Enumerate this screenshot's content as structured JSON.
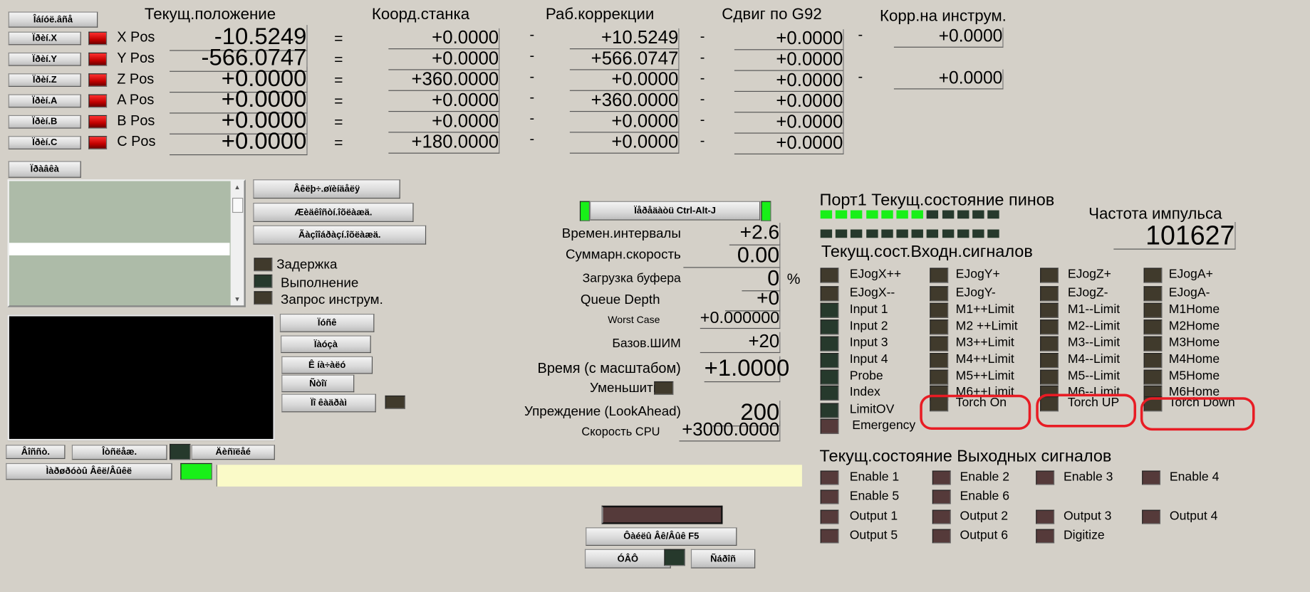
{
  "top_button": "Îáíóë.âñå",
  "headers": {
    "current": "Текущ.положение",
    "machine": "Коорд.станка",
    "work": "Раб.коррекции",
    "g92": "Сдвиг по G92",
    "tool": "Корр.на инструм."
  },
  "axes": [
    {
      "ref": "Ïðèí.X",
      "label": "X Pos",
      "current": "-10.5249",
      "machine": "+0.0000",
      "work": "+10.5249",
      "g92": "+0.0000",
      "tool": "+0.0000"
    },
    {
      "ref": "Ïðèí.Y",
      "label": "Y Pos",
      "current": "-566.0747",
      "machine": "+0.0000",
      "work": "+566.0747",
      "g92": "+0.0000"
    },
    {
      "ref": "Ïðèí.Z",
      "label": "Z Pos",
      "current": "+0.0000",
      "machine": "+360.0000",
      "work": "+0.0000",
      "g92": "+0.0000",
      "tool": "+0.0000"
    },
    {
      "ref": "Ïðèí.A",
      "label": "A Pos",
      "current": "+0.0000",
      "machine": "+0.0000",
      "work": "+360.0000",
      "g92": "+0.0000"
    },
    {
      "ref": "Ïðèí.B",
      "label": "B Pos",
      "current": "+0.0000",
      "machine": "+0.0000",
      "work": "+0.0000",
      "g92": "+0.0000"
    },
    {
      "ref": "Ïðèí.C",
      "label": "C Pos",
      "current": "+0.0000",
      "machine": "+180.0000",
      "work": "+0.0000",
      "g92": "+0.0000"
    }
  ],
  "eq": "=",
  "minus": "-",
  "edit_button": "Ïðàâêà",
  "side_buttons": [
    "Âêëþ÷.øïèíäåëÿ",
    "Æèäêîñòí.îõëàæä.",
    "Ãàçîîáðàçí.îõëàæä."
  ],
  "status_leds": [
    "Задержка",
    "Выполнение",
    "Запрос инструм."
  ],
  "run_buttons": [
    "Ïóñê",
    "Ïàóçà",
    "Ê íà÷àëó",
    "Ñòîï",
    "Ïî êàäðàì"
  ],
  "bottom_buttons": [
    "Âîññò.",
    "Îòñëåæ.",
    "Äèñïëåé"
  ],
  "mdi_button": "Ìàðøðóòû Âêë/Âûêë",
  "mdi_input": "",
  "jog_button": "Ïåðåäàòü Ctrl-Alt-J",
  "stats": [
    {
      "label": "Времен.интервалы",
      "value": "+2.6"
    },
    {
      "label": "Суммарн.скорость",
      "value": "0.00"
    },
    {
      "label": "Загрузка буфера",
      "value": "0",
      "unit": "%"
    },
    {
      "label": "Queue Depth",
      "value": "+0"
    },
    {
      "label": "Worst Case",
      "value": "+0.000000"
    },
    {
      "label": "Базов.ШИМ",
      "value": "+20"
    },
    {
      "label": "Время (с масштабом)",
      "value": "+1.0000"
    },
    {
      "label": "Уменьшить"
    },
    {
      "label": "Упреждение (LookAhead)",
      "value": "200"
    },
    {
      "label": "Скорость CPU",
      "value": "+3000.0000"
    }
  ],
  "f5_button": "Ôàéëû Âê/Âûê F5",
  "ufo_button": "ÓÂÔ",
  "reset_button": "Ñáðîñ",
  "port_title": "Порт1 Текущ.состояние пинов",
  "pins_row1": [
    1,
    1,
    1,
    1,
    1,
    1,
    1,
    0,
    0,
    0,
    0,
    0
  ],
  "pins_row2": [
    0,
    0,
    0,
    0,
    0,
    0,
    0,
    0,
    0,
    0,
    0,
    0
  ],
  "pulse_label": "Частота импульса",
  "pulse_value": "101627",
  "inputs_title": "Текущ.сост.Входн.сигналов",
  "inputs": [
    [
      "EJogX++",
      "EJogX--",
      "Input 1",
      "Input 2",
      "Input 3",
      "Input 4",
      "Probe",
      "Index",
      "LimitOV",
      "Emergency"
    ],
    [
      "EJogY+",
      "EJogY-",
      "M1++Limit",
      "M2 ++Limit",
      "M3++Limit",
      "M4++Limit",
      "M5++Limit",
      "M6++Limit",
      "Torch On"
    ],
    [
      "EJogZ+",
      "EJogZ-",
      "M1--Limit",
      "M2--Limit",
      "M3--Limit",
      "M4--Limit",
      "M5--Limit",
      "M6--Limit",
      "Torch UP"
    ],
    [
      "EJogA+",
      "EJogA-",
      "M1Home",
      "M2Home",
      "M3Home",
      "M4Home",
      "M5Home",
      "M6Home",
      "Torch Down"
    ]
  ],
  "outputs_title": "Текущ.состояние Выходных сигналов",
  "outputs": [
    [
      "Enable 1",
      "Enable 2",
      "Enable 3",
      "Enable 4"
    ],
    [
      "Enable 5",
      "Enable 6"
    ],
    [
      "Output 1",
      "Output 2",
      "Output 3",
      "Output 4"
    ],
    [
      "Output 5",
      "Output 6",
      "Digitize"
    ]
  ],
  "colors": {
    "led_red": "#c00000",
    "led_green": "#18f018",
    "highlight": "#e81c24",
    "input_bg": "#fafac8",
    "list_bg": "#adbba8"
  }
}
